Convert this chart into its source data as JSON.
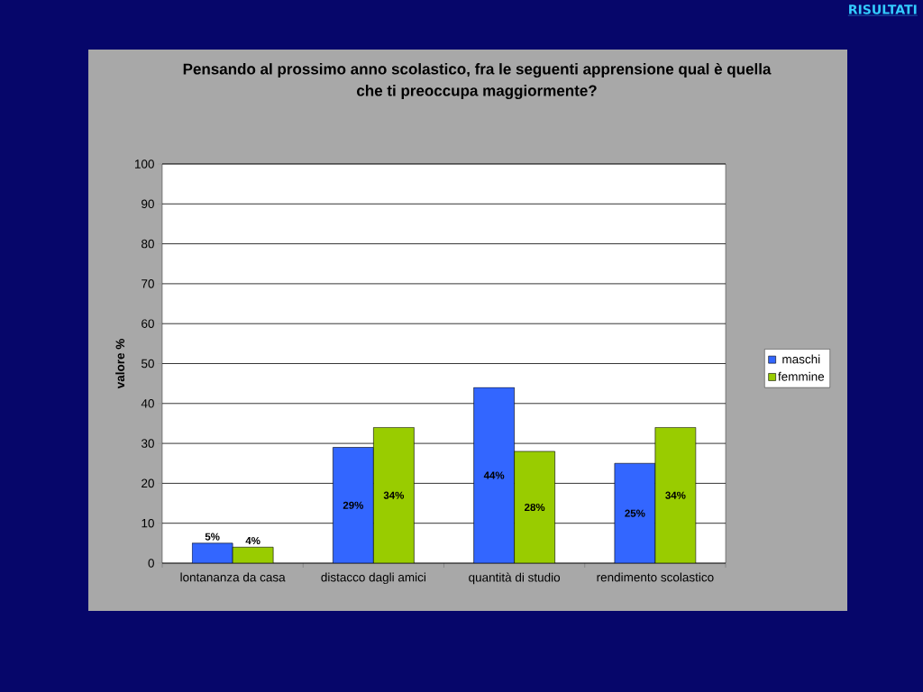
{
  "chart_data": {
    "type": "bar",
    "title": "Pensando al prossimo anno scolastico, fra le seguenti apprensione qual è quella che ti preoccupa maggiormente?",
    "ylabel": "valore %",
    "categories": [
      "lontananza da casa",
      "distacco dagli amici",
      "quantità di studio",
      "rendimento scolastico"
    ],
    "series": [
      {
        "name": "maschi",
        "color": "#3366ff",
        "values": [
          5,
          29,
          44,
          25
        ],
        "value_labels": [
          "5%",
          "29%",
          "44%",
          "25%"
        ]
      },
      {
        "name": "femmine",
        "color": "#99cc00",
        "values": [
          4,
          34,
          28,
          34
        ],
        "value_labels": [
          "4%",
          "34%",
          "28%",
          "34%"
        ]
      }
    ],
    "ylim": [
      0,
      100
    ],
    "yticks": [
      0,
      10,
      20,
      30,
      40,
      50,
      60,
      70,
      80,
      90,
      100
    ],
    "grid": "y",
    "legend": "right",
    "annotations": [
      "RISULTATI"
    ]
  }
}
